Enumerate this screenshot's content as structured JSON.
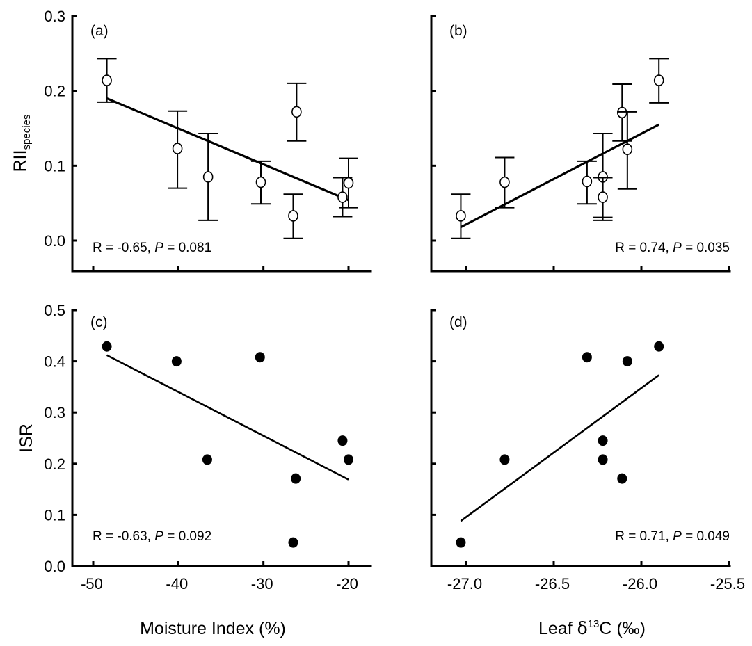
{
  "chart_data": [
    {
      "id": "a",
      "type": "scatter",
      "panel_label": "(a)",
      "xlabel": "",
      "ylabel": "RII",
      "ylabel_subscript": "species",
      "xlim": [
        -52.5,
        -17.4
      ],
      "ylim": [
        -0.041,
        0.3
      ],
      "xticks": [
        -50,
        -40,
        -30,
        -20
      ],
      "xtick_labels": [],
      "yticks": [
        0.0,
        0.1,
        0.2,
        0.3
      ],
      "ytick_labels": [
        "0.0",
        "0.1",
        "0.2",
        "0.3"
      ],
      "marker": "open-circle",
      "error_bars": true,
      "points": [
        {
          "x": -48.4,
          "y": 0.214,
          "y_upper": 0.243,
          "y_lower": 0.185
        },
        {
          "x": -40.1,
          "y": 0.123,
          "y_upper": 0.173,
          "y_lower": 0.07
        },
        {
          "x": -36.5,
          "y": 0.085,
          "y_upper": 0.143,
          "y_lower": 0.027
        },
        {
          "x": -30.3,
          "y": 0.078,
          "y_upper": 0.106,
          "y_lower": 0.049
        },
        {
          "x": -26.1,
          "y": 0.172,
          "y_upper": 0.21,
          "y_lower": 0.133
        },
        {
          "x": -26.5,
          "y": 0.033,
          "y_upper": 0.062,
          "y_lower": 0.003
        },
        {
          "x": -20.7,
          "y": 0.058,
          "y_upper": 0.084,
          "y_lower": 0.032
        },
        {
          "x": -20.0,
          "y": 0.077,
          "y_upper": 0.11,
          "y_lower": 0.044
        }
      ],
      "fit_line": {
        "x": [
          -48.4,
          -20.0
        ],
        "y": [
          0.19,
          0.054
        ]
      },
      "stat": {
        "prefix": "R = -0.65, ",
        "p_symbol": "P",
        "suffix": " = 0.081",
        "position": "bottom-left"
      }
    },
    {
      "id": "b",
      "type": "scatter",
      "panel_label": "(b)",
      "xlabel": "",
      "ylabel": "",
      "xlim": [
        -27.2,
        -25.5
      ],
      "ylim": [
        -0.041,
        0.3
      ],
      "xticks": [
        -27.0,
        -26.5,
        -26.0,
        -25.5
      ],
      "xtick_labels": [],
      "yticks": [
        0.0,
        0.1,
        0.2,
        0.3
      ],
      "ytick_labels": [],
      "marker": "open-circle",
      "error_bars": true,
      "points": [
        {
          "x": -27.03,
          "y": 0.033,
          "y_upper": 0.062,
          "y_lower": 0.003
        },
        {
          "x": -26.78,
          "y": 0.078,
          "y_upper": 0.111,
          "y_lower": 0.044
        },
        {
          "x": -26.31,
          "y": 0.079,
          "y_upper": 0.106,
          "y_lower": 0.049
        },
        {
          "x": -26.22,
          "y": 0.085,
          "y_upper": 0.143,
          "y_lower": 0.027
        },
        {
          "x": -26.22,
          "y": 0.058,
          "y_upper": 0.084,
          "y_lower": 0.031
        },
        {
          "x": -26.11,
          "y": 0.171,
          "y_upper": 0.209,
          "y_lower": 0.133
        },
        {
          "x": -26.08,
          "y": 0.122,
          "y_upper": 0.172,
          "y_lower": 0.069
        },
        {
          "x": -25.9,
          "y": 0.214,
          "y_upper": 0.243,
          "y_lower": 0.184
        }
      ],
      "fit_line": {
        "x": [
          -27.03,
          -25.9
        ],
        "y": [
          0.018,
          0.155
        ]
      },
      "stat": {
        "prefix": "R = 0.74, ",
        "p_symbol": "P",
        "suffix": " = 0.035",
        "position": "bottom-right"
      }
    },
    {
      "id": "c",
      "type": "scatter",
      "panel_label": "(c)",
      "xlabel": "Moisture Index (%)",
      "ylabel": "ISR",
      "xlim": [
        -52.5,
        -17.4
      ],
      "ylim": [
        0.0,
        0.5
      ],
      "xticks": [
        -50,
        -40,
        -30,
        -20
      ],
      "xtick_labels": [
        "-50",
        "-40",
        "-30",
        "-20"
      ],
      "yticks": [
        0.0,
        0.1,
        0.2,
        0.3,
        0.4,
        0.5
      ],
      "ytick_labels": [
        "0.0",
        "0.1",
        "0.2",
        "0.3",
        "0.4",
        "0.5"
      ],
      "marker": "filled-circle",
      "error_bars": false,
      "points": [
        {
          "x": -48.4,
          "y": 0.429
        },
        {
          "x": -40.2,
          "y": 0.4
        },
        {
          "x": -36.6,
          "y": 0.208
        },
        {
          "x": -30.4,
          "y": 0.408
        },
        {
          "x": -26.2,
          "y": 0.171
        },
        {
          "x": -26.5,
          "y": 0.046
        },
        {
          "x": -20.7,
          "y": 0.245
        },
        {
          "x": -20.0,
          "y": 0.208
        }
      ],
      "fit_line": {
        "x": [
          -48.4,
          -20.0
        ],
        "y": [
          0.412,
          0.169
        ]
      },
      "stat": {
        "prefix": "R = -0.63, ",
        "p_symbol": "P",
        "suffix": " = 0.092",
        "position": "bottom-left"
      }
    },
    {
      "id": "d",
      "type": "scatter",
      "panel_label": "(d)",
      "xlabel_parts": {
        "pre": "Leaf ",
        "delta": "δ",
        "sup": "13",
        "post": "C (‰)"
      },
      "ylabel": "",
      "xlim": [
        -27.2,
        -25.5
      ],
      "ylim": [
        0.0,
        0.5
      ],
      "xticks": [
        -27.0,
        -26.5,
        -26.0,
        -25.5
      ],
      "xtick_labels": [
        "-27.0",
        "-26.5",
        "-26.0",
        "-25.5"
      ],
      "yticks": [
        0.0,
        0.1,
        0.2,
        0.3,
        0.4,
        0.5
      ],
      "ytick_labels": [],
      "marker": "filled-circle",
      "error_bars": false,
      "points": [
        {
          "x": -27.03,
          "y": 0.046
        },
        {
          "x": -26.78,
          "y": 0.208
        },
        {
          "x": -26.31,
          "y": 0.408
        },
        {
          "x": -26.22,
          "y": 0.245
        },
        {
          "x": -26.22,
          "y": 0.208
        },
        {
          "x": -26.11,
          "y": 0.171
        },
        {
          "x": -26.08,
          "y": 0.4
        },
        {
          "x": -25.9,
          "y": 0.429
        }
      ],
      "fit_line": {
        "x": [
          -27.03,
          -25.9
        ],
        "y": [
          0.088,
          0.373
        ]
      },
      "stat": {
        "prefix": "R = 0.71, ",
        "p_symbol": "P",
        "suffix": " = 0.049",
        "position": "bottom-right"
      }
    }
  ],
  "colors": {
    "ink": "#000000",
    "background": "#ffffff"
  }
}
